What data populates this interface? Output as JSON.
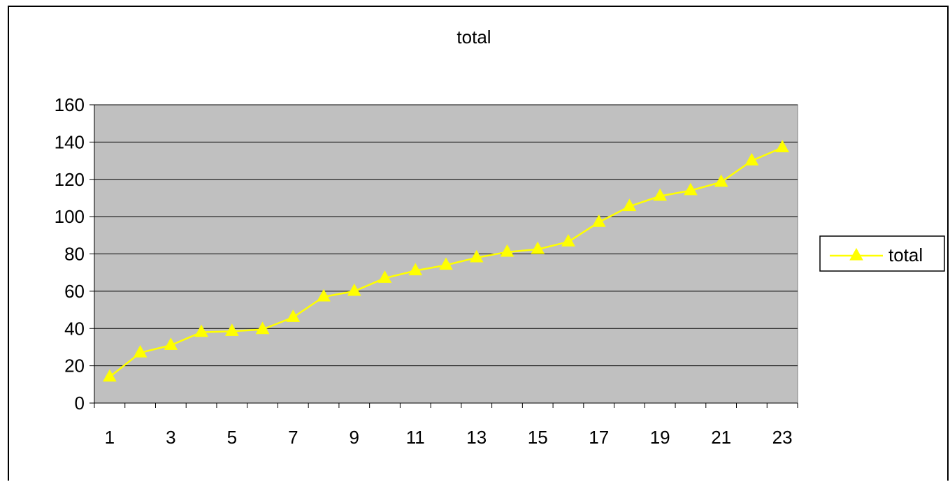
{
  "chart_data": {
    "type": "line",
    "title": "total",
    "xlabel": "",
    "ylabel": "",
    "x": [
      1,
      2,
      3,
      4,
      5,
      6,
      7,
      8,
      9,
      10,
      11,
      12,
      13,
      14,
      15,
      16,
      17,
      18,
      19,
      20,
      21,
      22,
      23
    ],
    "x_tick_labels": [
      "1",
      "3",
      "5",
      "7",
      "9",
      "11",
      "13",
      "15",
      "17",
      "19",
      "21",
      "23"
    ],
    "series": [
      {
        "name": "total",
        "values": [
          14,
          27,
          31,
          38,
          38.5,
          39.5,
          46,
          57,
          60,
          67,
          71,
          74,
          78,
          81,
          82.5,
          86.5,
          97,
          105.5,
          111,
          114,
          118.5,
          130,
          137
        ],
        "color": "#ffff00",
        "marker": "triangle"
      }
    ],
    "ylim": [
      0,
      160
    ],
    "y_ticks": [
      0,
      20,
      40,
      60,
      80,
      100,
      120,
      140,
      160
    ],
    "grid": true,
    "legend_position": "right",
    "plot_background": "#c0c0c0",
    "gridline_color": "#000000"
  }
}
